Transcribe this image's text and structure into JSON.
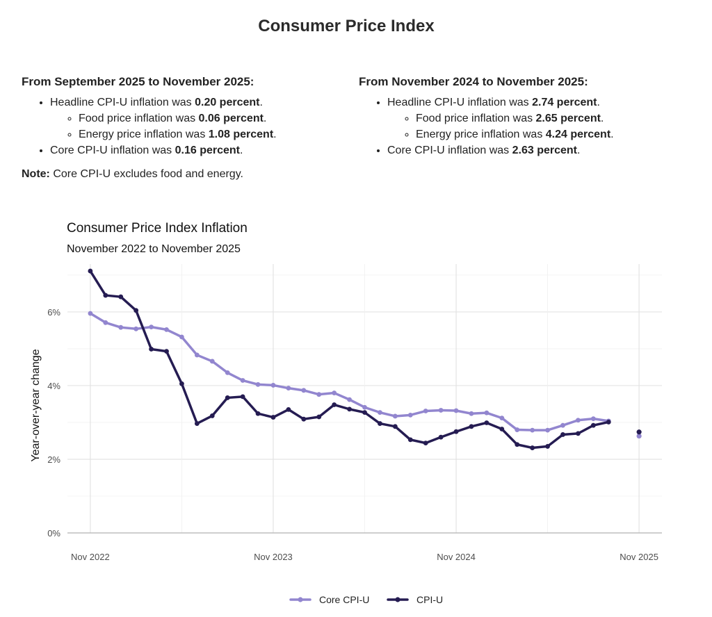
{
  "page": {
    "title": "Consumer Price Index"
  },
  "summary": {
    "left": {
      "heading": "From September 2025 to November 2025:",
      "headline": {
        "prefix": "Headline CPI-U inflation was ",
        "value": "0.20 percent",
        "suffix": "."
      },
      "food": {
        "prefix": "Food price inflation was ",
        "value": "0.06 percent",
        "suffix": "."
      },
      "energy": {
        "prefix": "Energy price inflation was ",
        "value": "1.08 percent",
        "suffix": "."
      },
      "core": {
        "prefix": "Core CPI-U inflation was ",
        "value": "0.16 percent",
        "suffix": "."
      }
    },
    "right": {
      "heading": "From November 2024 to November 2025:",
      "headline": {
        "prefix": "Headline CPI-U inflation was ",
        "value": "2.74 percent",
        "suffix": "."
      },
      "food": {
        "prefix": "Food price inflation was ",
        "value": "2.65 percent",
        "suffix": "."
      },
      "energy": {
        "prefix": "Energy price inflation was ",
        "value": "4.24 percent",
        "suffix": "."
      },
      "core": {
        "prefix": "Core CPI-U inflation was ",
        "value": "2.63 percent",
        "suffix": "."
      }
    },
    "note": {
      "label": "Note:",
      "text": " Core CPI-U excludes food and energy."
    }
  },
  "chart_data": {
    "type": "line",
    "title": "Consumer Price Index Inflation",
    "subtitle": "November 2022 to November 2025",
    "xlabel": "",
    "ylabel": "Year-over-year change",
    "x_start": "Nov 2022",
    "x_unit": "months since Nov 2022",
    "x_range": [
      0,
      36
    ],
    "x_ticks": [
      {
        "value": 0,
        "label": "Nov 2022"
      },
      {
        "value": 12,
        "label": "Nov 2023"
      },
      {
        "value": 24,
        "label": "Nov 2024"
      },
      {
        "value": 36,
        "label": "Nov 2025"
      }
    ],
    "ylim": [
      0,
      7.3
    ],
    "y_ticks": [
      {
        "value": 0,
        "label": "0%"
      },
      {
        "value": 2,
        "label": "2%"
      },
      {
        "value": 4,
        "label": "4%"
      },
      {
        "value": 6,
        "label": "6%"
      }
    ],
    "grid": true,
    "legend": "bottom-center",
    "series": [
      {
        "name": "Core CPI-U",
        "color": "#9286cf",
        "values": [
          5.96,
          5.71,
          5.58,
          5.54,
          5.59,
          5.52,
          5.32,
          4.83,
          4.66,
          4.35,
          4.14,
          4.03,
          4.01,
          3.93,
          3.87,
          3.76,
          3.8,
          3.62,
          3.41,
          3.27,
          3.17,
          3.2,
          3.31,
          3.33,
          3.32,
          3.24,
          3.26,
          3.12,
          2.8,
          2.79,
          2.79,
          2.92,
          3.06,
          3.1,
          3.04
        ],
        "extra_points": [
          {
            "x": 36,
            "y": 2.63
          }
        ]
      },
      {
        "name": "CPI-U",
        "color": "#251c52",
        "values": [
          7.11,
          6.45,
          6.41,
          6.04,
          4.99,
          4.93,
          4.05,
          2.97,
          3.18,
          3.67,
          3.7,
          3.24,
          3.14,
          3.35,
          3.09,
          3.15,
          3.48,
          3.36,
          3.27,
          2.97,
          2.89,
          2.53,
          2.44,
          2.6,
          2.75,
          2.89,
          2.99,
          2.82,
          2.4,
          2.31,
          2.35,
          2.67,
          2.7,
          2.92,
          3.01
        ],
        "extra_points": [
          {
            "x": 36,
            "y": 2.74
          }
        ]
      }
    ]
  }
}
